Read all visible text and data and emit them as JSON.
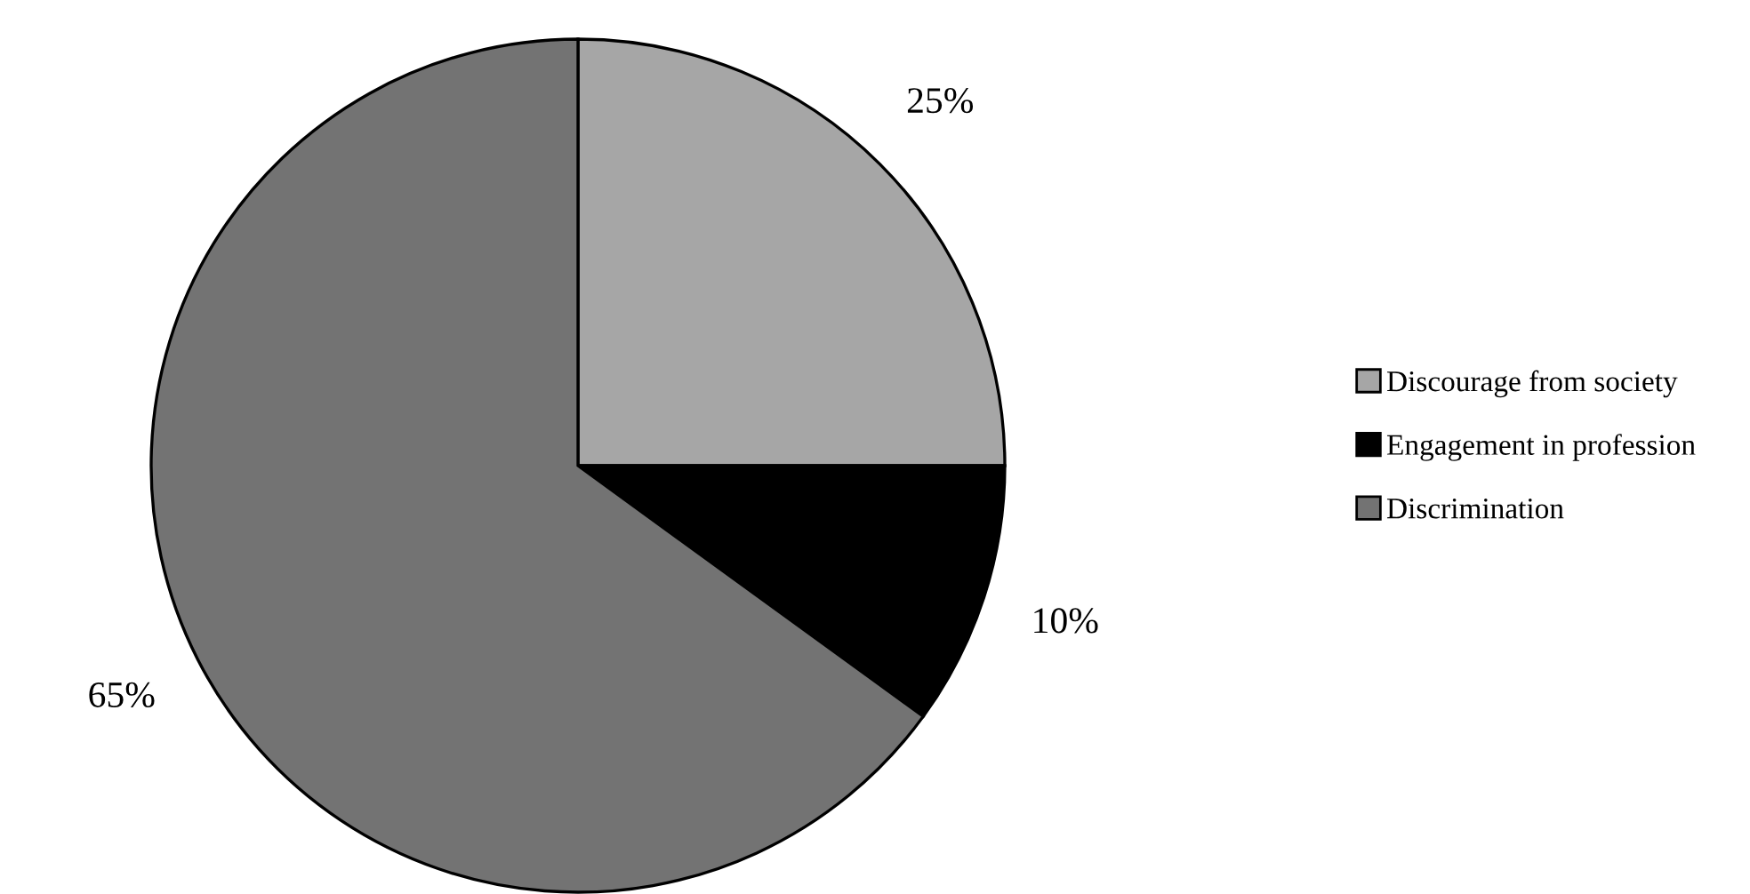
{
  "chart_data": {
    "type": "pie",
    "categories": [
      "Discourage from society",
      "Engagement in profession",
      "Discrimination"
    ],
    "values": [
      25,
      10,
      65
    ],
    "colors": [
      "#a6a6a6",
      "#000000",
      "#737373"
    ],
    "value_labels": [
      "25%",
      "10%",
      "65%"
    ],
    "legend": "right"
  }
}
